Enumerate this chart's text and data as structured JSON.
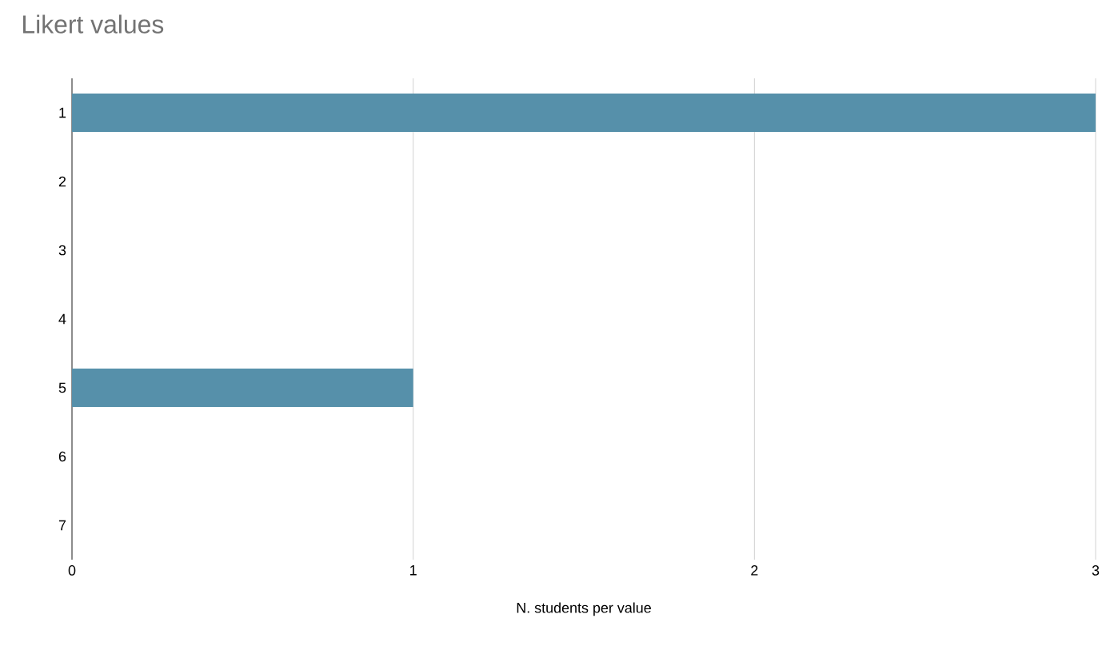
{
  "chart_data": {
    "type": "bar",
    "orientation": "horizontal",
    "title": "Likert values",
    "xlabel": "N. students per value",
    "categories": [
      "1",
      "2",
      "3",
      "4",
      "5",
      "6",
      "7"
    ],
    "values": [
      3,
      0,
      0,
      0,
      1,
      0,
      0
    ],
    "color": "#5690aa",
    "xlim": [
      0,
      3
    ],
    "xticks": [
      0,
      1,
      2,
      3
    ],
    "grid": "x"
  }
}
